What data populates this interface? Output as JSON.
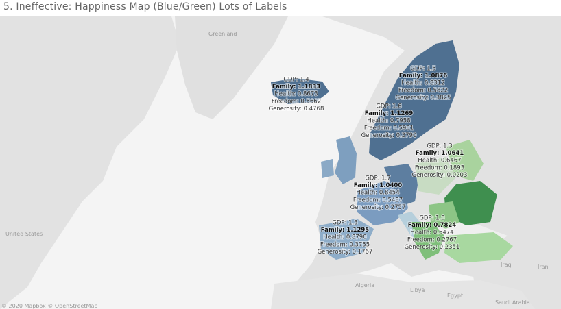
{
  "title": "5. Ineffective: Happiness Map (Blue/Green) Lots of Labels",
  "map_labels": [
    "Greenland",
    "United States",
    "Algeria",
    "Libya",
    "Egypt",
    "Iraq",
    "Iran",
    "Saudi Arabia"
  ],
  "attribution": "© 2020 Mapbox © OpenStreetMap",
  "annotations": [
    {
      "gdp": "GDP: 1.4",
      "family": "Family: 1.1833",
      "health": "Health: 0.8673",
      "freedom": "Freedom: 0.5662",
      "generosity": "Generosity: 0.4768"
    },
    {
      "gdp": "GDP: 1.5",
      "family": "Family: 1.0876",
      "health": "Health: 0.8312",
      "freedom": "Freedom: 0.5822",
      "generosity": "Generosity: 0.3825"
    },
    {
      "gdp": "GDP: 1.6",
      "family": "Family: 1.1269",
      "health": "Health: 0.7958",
      "freedom": "Freedom: 0.5961",
      "generosity": "Generosity: 0.3790"
    },
    {
      "gdp": "GDP: 1.3",
      "family": "Family: 1.0641",
      "health": "Health: 0.6467",
      "freedom": "Freedom: 0.1893",
      "generosity": "Generosity: 0.0203"
    },
    {
      "gdp": "GDP: 1.7",
      "family": "Family: 1.0400",
      "health": "Health: 0.8454",
      "freedom": "Freedom: 0.5487",
      "generosity": "Generosity: 0.2757"
    },
    {
      "gdp": "GDP: 1.3",
      "family": "Family: 1.1295",
      "health": "Health: 0.8790",
      "freedom": "Freedom: 0.3755",
      "generosity": "Generosity: 0.1767"
    },
    {
      "gdp": "GDP: 1.0",
      "family": "Family: 0.7824",
      "health": "Health: 0.6474",
      "freedom": "Freedom: 0.2767",
      "generosity": "Generosity: 0.2351"
    }
  ]
}
